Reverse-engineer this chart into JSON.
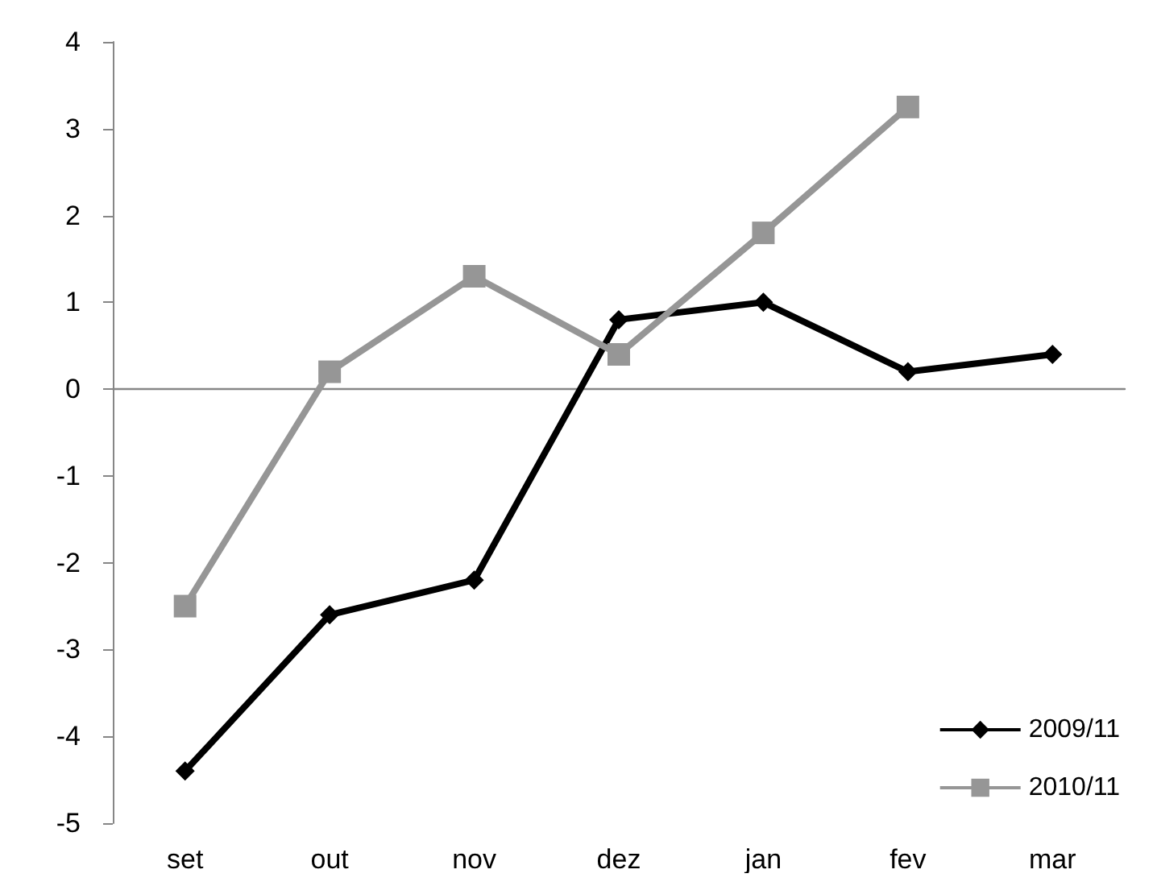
{
  "chart_data": {
    "type": "line",
    "categories": [
      "set",
      "out",
      "nov",
      "dez",
      "jan",
      "fev",
      "mar"
    ],
    "series": [
      {
        "name": "2009/11",
        "color": "#000000",
        "marker": "diamond",
        "values": [
          -4.4,
          -2.6,
          -2.2,
          0.8,
          1.0,
          0.2,
          0.4
        ]
      },
      {
        "name": "2010/11",
        "color": "#969696",
        "marker": "square",
        "values": [
          -2.5,
          0.2,
          1.3,
          0.4,
          1.8,
          3.25,
          null
        ]
      }
    ],
    "ylim": [
      -5,
      4
    ],
    "yticks": [
      -5,
      -4,
      -3,
      -2,
      -1,
      0,
      1,
      2,
      3,
      4
    ],
    "legend": "bottom right",
    "line_style": "solid"
  }
}
